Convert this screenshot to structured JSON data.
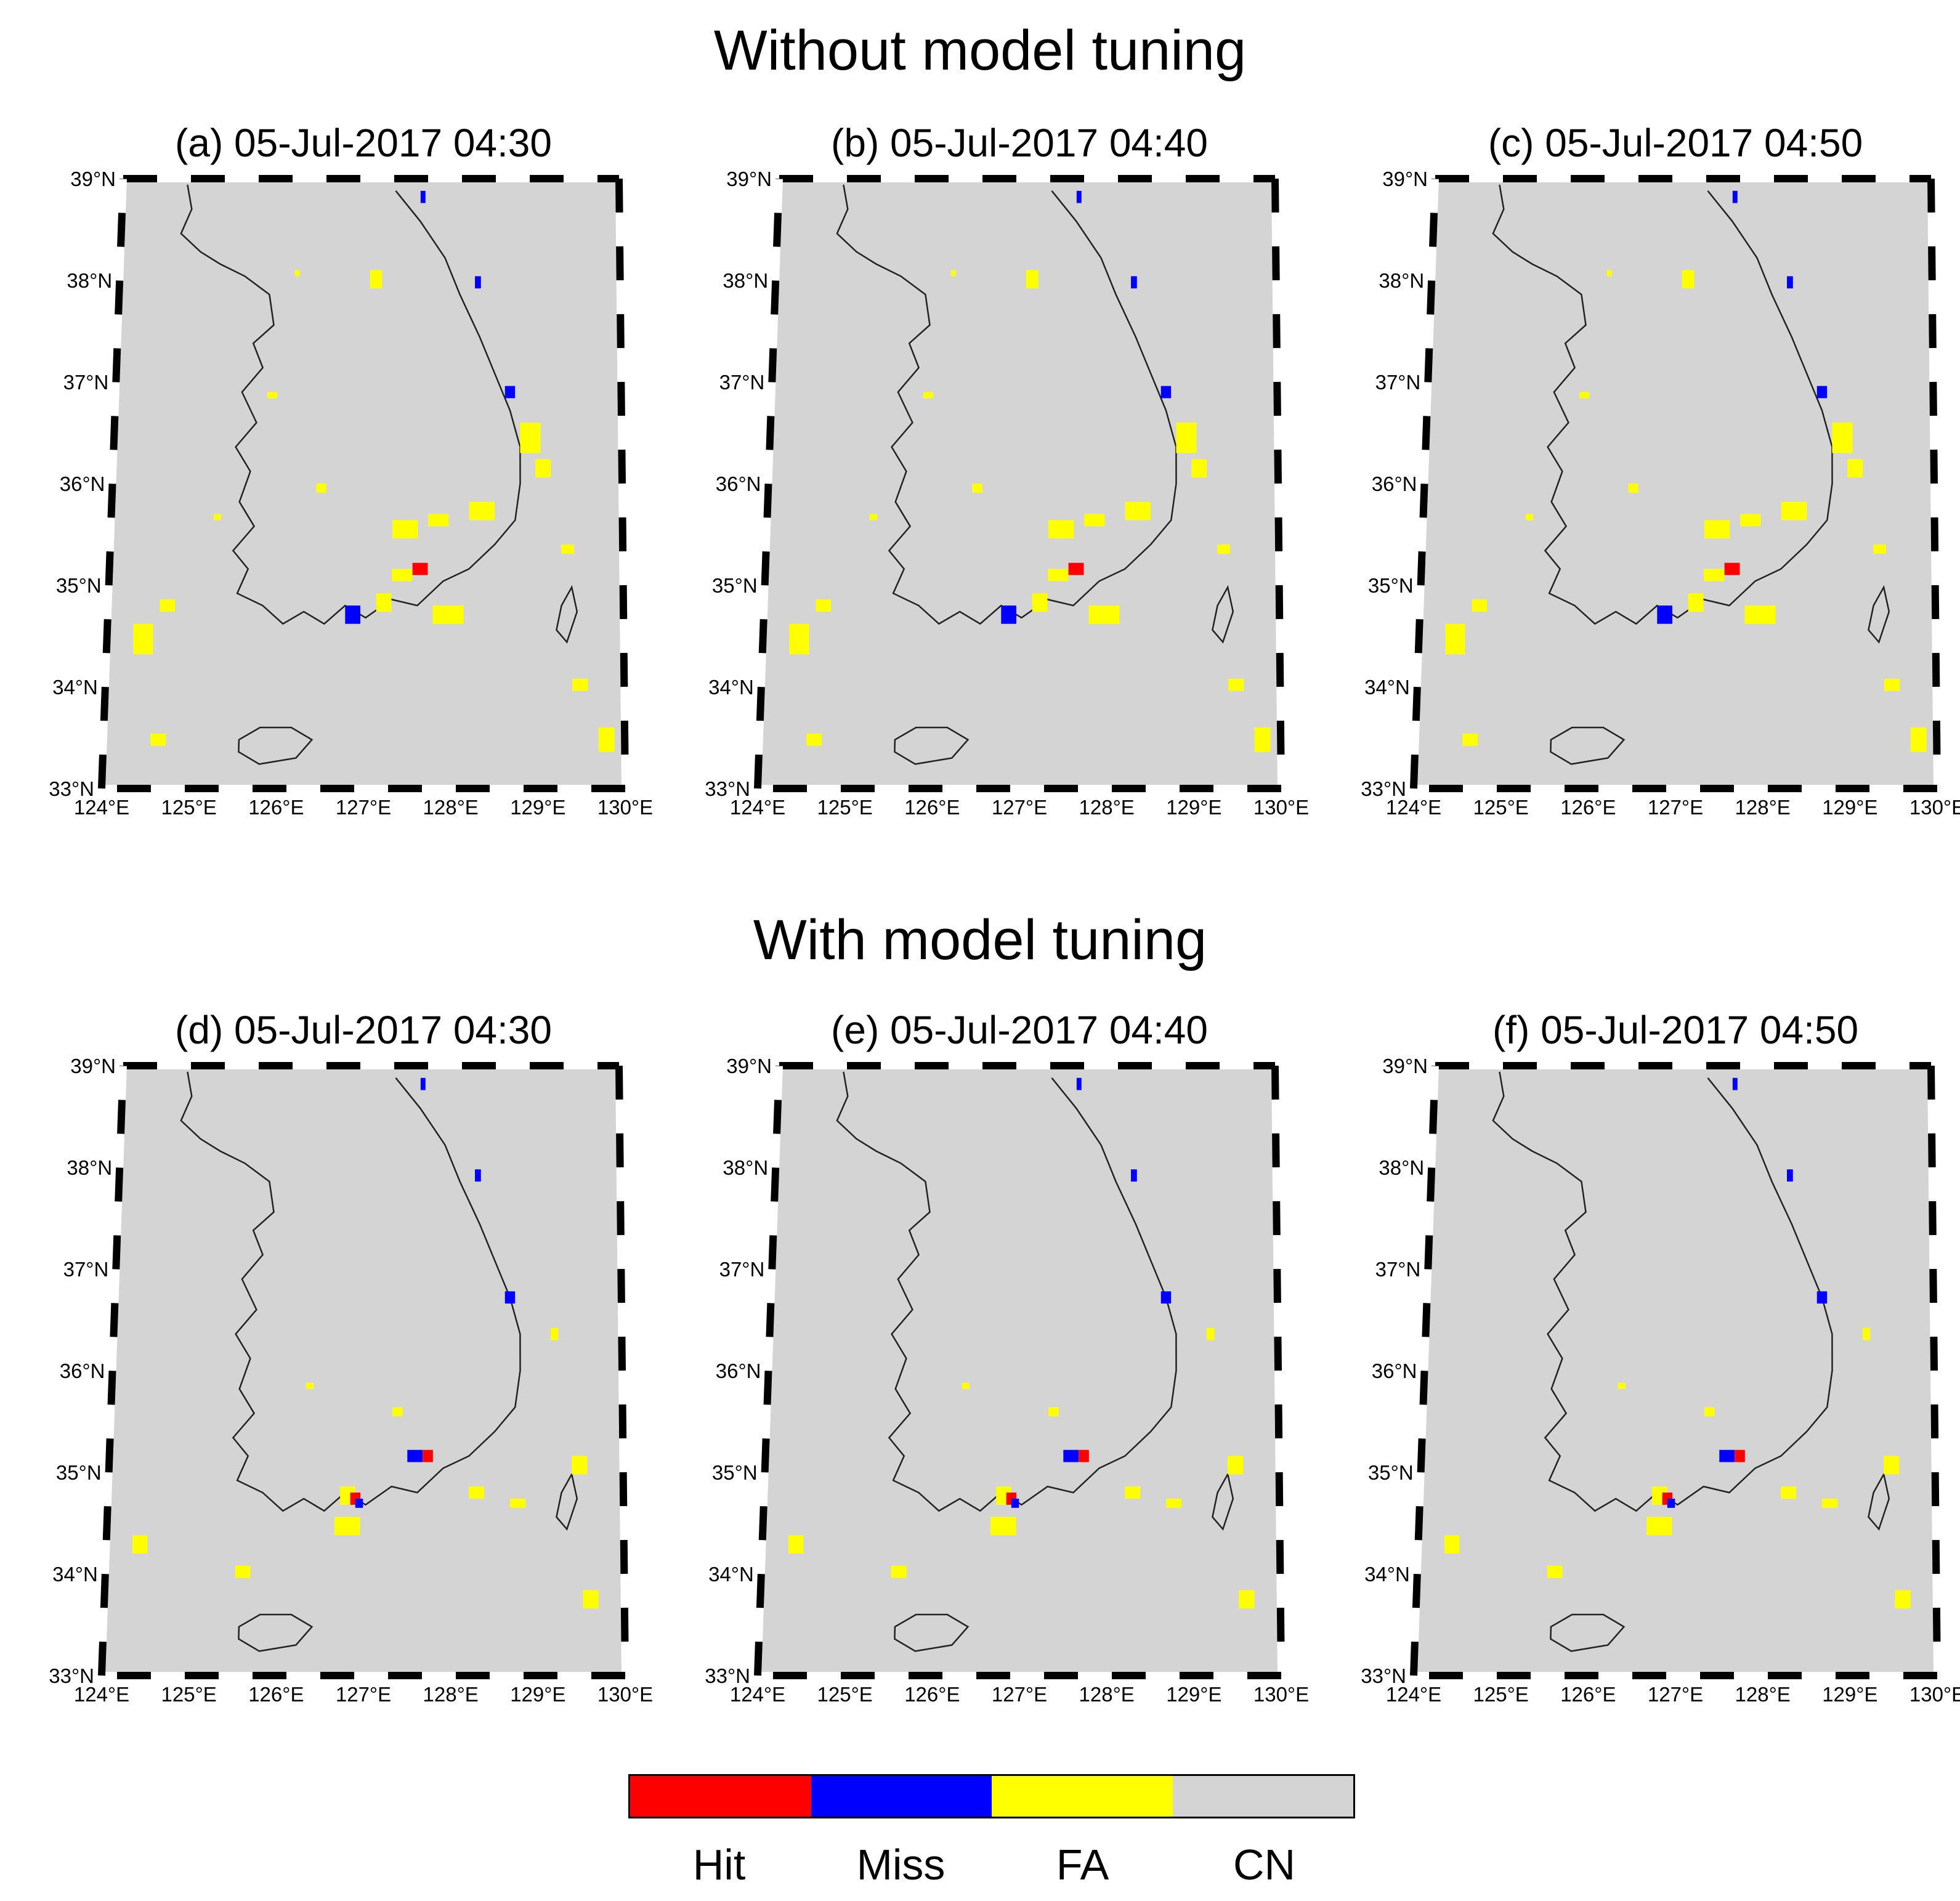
{
  "titles": {
    "top": "Without model tuning",
    "bottom": "With model tuning"
  },
  "axes": {
    "lat_labels": [
      "39°N",
      "38°N",
      "37°N",
      "36°N",
      "35°N",
      "34°N",
      "33°N"
    ],
    "lon_labels": [
      "124°E",
      "125°E",
      "126°E",
      "127°E",
      "128°E",
      "129°E",
      "130°E"
    ]
  },
  "panels": [
    {
      "id": "a",
      "title": "(a) 05-Jul-2017 04:30"
    },
    {
      "id": "b",
      "title": "(b) 05-Jul-2017 04:40"
    },
    {
      "id": "c",
      "title": "(c) 05-Jul-2017 04:50"
    },
    {
      "id": "d",
      "title": "(d) 05-Jul-2017 04:30"
    },
    {
      "id": "e",
      "title": "(e) 05-Jul-2017 04:40"
    },
    {
      "id": "f",
      "title": "(f) 05-Jul-2017 04:50"
    }
  ],
  "legend": {
    "items": [
      {
        "label": "Hit",
        "color": "#ff0000"
      },
      {
        "label": "Miss",
        "color": "#0000ff"
      },
      {
        "label": "FA",
        "color": "#ffff00"
      },
      {
        "label": "CN",
        "color": "#d4d4d4"
      }
    ]
  },
  "colors": {
    "background": "#d4d4d4",
    "coastline": "#222222",
    "hit": "#ff0000",
    "miss": "#0000ff",
    "fa": "#ffff00"
  }
}
